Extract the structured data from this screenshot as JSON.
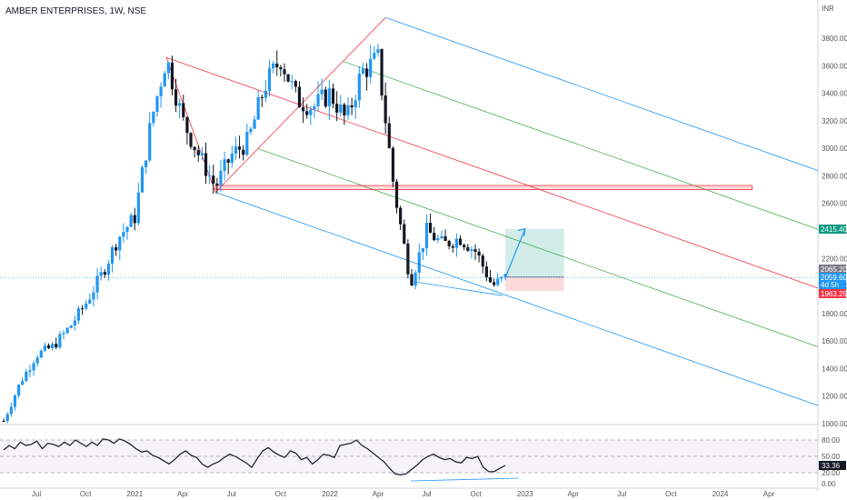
{
  "header": {
    "title": "AMBER ENTERPRISES, 1W, NSE"
  },
  "chart_data": [
    {
      "type": "candlestick",
      "title": "AMBER ENTERPRISES, 1W, NSE",
      "currency": "INR",
      "ylim": [
        1000,
        4000
      ],
      "y_ticks": [
        "3800.00",
        "3600.00",
        "3400.00",
        "3200.00",
        "3000.00",
        "2800.00",
        "2600.00",
        "2400.00",
        "2200.00",
        "2000.00",
        "1800.00",
        "1600.00",
        "1400.00",
        "1200.00",
        "1000.00"
      ],
      "y_tick_values": [
        3800,
        3600,
        3400,
        3200,
        3000,
        2800,
        2600,
        2400,
        2200,
        2000,
        1800,
        1600,
        1400,
        1200,
        1000
      ],
      "x_ticks": [
        "Jul",
        "Oct",
        "2021",
        "Apr",
        "Jul",
        "Oct",
        "2022",
        "Apr",
        "Jul",
        "Oct",
        "2023",
        "Apr",
        "Jul",
        "Oct",
        "2024",
        "Apr"
      ],
      "x_tick_dates": [
        "2020-07-01",
        "2020-10-01",
        "2021-01-01",
        "2021-04-01",
        "2021-07-01",
        "2021-10-01",
        "2022-01-01",
        "2022-04-01",
        "2022-07-01",
        "2022-10-01",
        "2023-01-01",
        "2023-04-01",
        "2023-07-01",
        "2023-10-01",
        "2024-01-01",
        "2024-04-01"
      ],
      "up_color": "#2196f3",
      "down_color": "#131722",
      "price_tags": [
        {
          "label": "2415.40",
          "value": 2415.4,
          "color": "#089981"
        },
        {
          "label": "2065.20",
          "value": 2065.2,
          "color": "#787b86"
        },
        {
          "label": "2059.60",
          "value": 2059.6,
          "color": "#2196f3"
        },
        {
          "label": "4d 5h",
          "value": 2010,
          "color": "#2196f3"
        },
        {
          "label": "1963.25",
          "value": 1963.25,
          "color": "#f23645"
        }
      ],
      "series": [
        {
          "name": "close_anchor_points",
          "points": [
            [
              "2020-05-01",
              1020
            ],
            [
              "2020-06-01",
              1300
            ],
            [
              "2020-07-01",
              1500
            ],
            [
              "2020-08-01",
              1560
            ],
            [
              "2020-09-01",
              1700
            ],
            [
              "2020-10-01",
              1870
            ],
            [
              "2020-11-01",
              2090
            ],
            [
              "2020-12-01",
              2350
            ],
            [
              "2021-01-01",
              2500
            ],
            [
              "2021-02-01",
              3200
            ],
            [
              "2021-03-01",
              3660
            ],
            [
              "2021-04-01",
              3200
            ],
            [
              "2021-05-01",
              2950
            ],
            [
              "2021-06-01",
              2720
            ],
            [
              "2021-07-01",
              2950
            ],
            [
              "2021-08-01",
              3050
            ],
            [
              "2021-09-01",
              3450
            ],
            [
              "2021-10-01",
              3650
            ],
            [
              "2021-11-01",
              3350
            ],
            [
              "2021-12-01",
              3300
            ],
            [
              "2022-01-01",
              3400
            ],
            [
              "2022-02-01",
              3200
            ],
            [
              "2022-03-01",
              3550
            ],
            [
              "2022-04-01",
              3650
            ],
            [
              "2022-05-01",
              2700
            ],
            [
              "2022-06-01",
              2030
            ],
            [
              "2022-07-01",
              2400
            ],
            [
              "2022-08-01",
              2300
            ],
            [
              "2022-09-01",
              2350
            ],
            [
              "2022-10-01",
              2250
            ],
            [
              "2022-11-01",
              2000
            ],
            [
              "2022-11-25",
              2059.6
            ]
          ]
        }
      ],
      "annotations": {
        "pitchfork_1": {
          "pivot": [
            "2021-03-01",
            3660
          ],
          "a": [
            "2021-06-01",
            2680
          ],
          "b": [
            "2022-04-15",
            3950
          ]
        },
        "support_zone": {
          "from": "2021-06-01",
          "to": "2024-03-01",
          "y": [
            2700,
            2730
          ]
        },
        "position": {
          "entry": 2065.2,
          "target": 2415.4,
          "stop": 1963.25,
          "from": "2022-11-25",
          "to": "2023-03-15"
        },
        "projection_arrow": {
          "from": [
            "2022-11-25",
            2060
          ],
          "to": [
            "2023-01-01",
            2415
          ]
        }
      }
    },
    {
      "type": "line",
      "title": "RSI",
      "ylim": [
        0,
        100
      ],
      "y_ticks": [
        "80.00",
        "50.00",
        "20.00",
        "0.00"
      ],
      "y_tick_values": [
        80,
        50,
        20,
        0
      ],
      "band": [
        20,
        80
      ],
      "current_value_label": "33.36",
      "current_value": 33.36,
      "series": [
        {
          "name": "rsi",
          "values": [
            62,
            70,
            64,
            76,
            70,
            72,
            78,
            64,
            74,
            72,
            68,
            76,
            70,
            80,
            74,
            68,
            76,
            70,
            82,
            80,
            74,
            82,
            78,
            72,
            64,
            58,
            60,
            52,
            48,
            42,
            36,
            44,
            54,
            60,
            52,
            48,
            36,
            30,
            36,
            40,
            48,
            54,
            50,
            44,
            38,
            30,
            46,
            60,
            66,
            58,
            52,
            48,
            60,
            56,
            44,
            48,
            36,
            44,
            54,
            52,
            48,
            70,
            72,
            74,
            80,
            70,
            64,
            56,
            48,
            40,
            28,
            18,
            16,
            18,
            26,
            34,
            44,
            50,
            54,
            48,
            44,
            46,
            40,
            38,
            48,
            46,
            50,
            30,
            22,
            22,
            28,
            33.36
          ]
        }
      ]
    }
  ]
}
